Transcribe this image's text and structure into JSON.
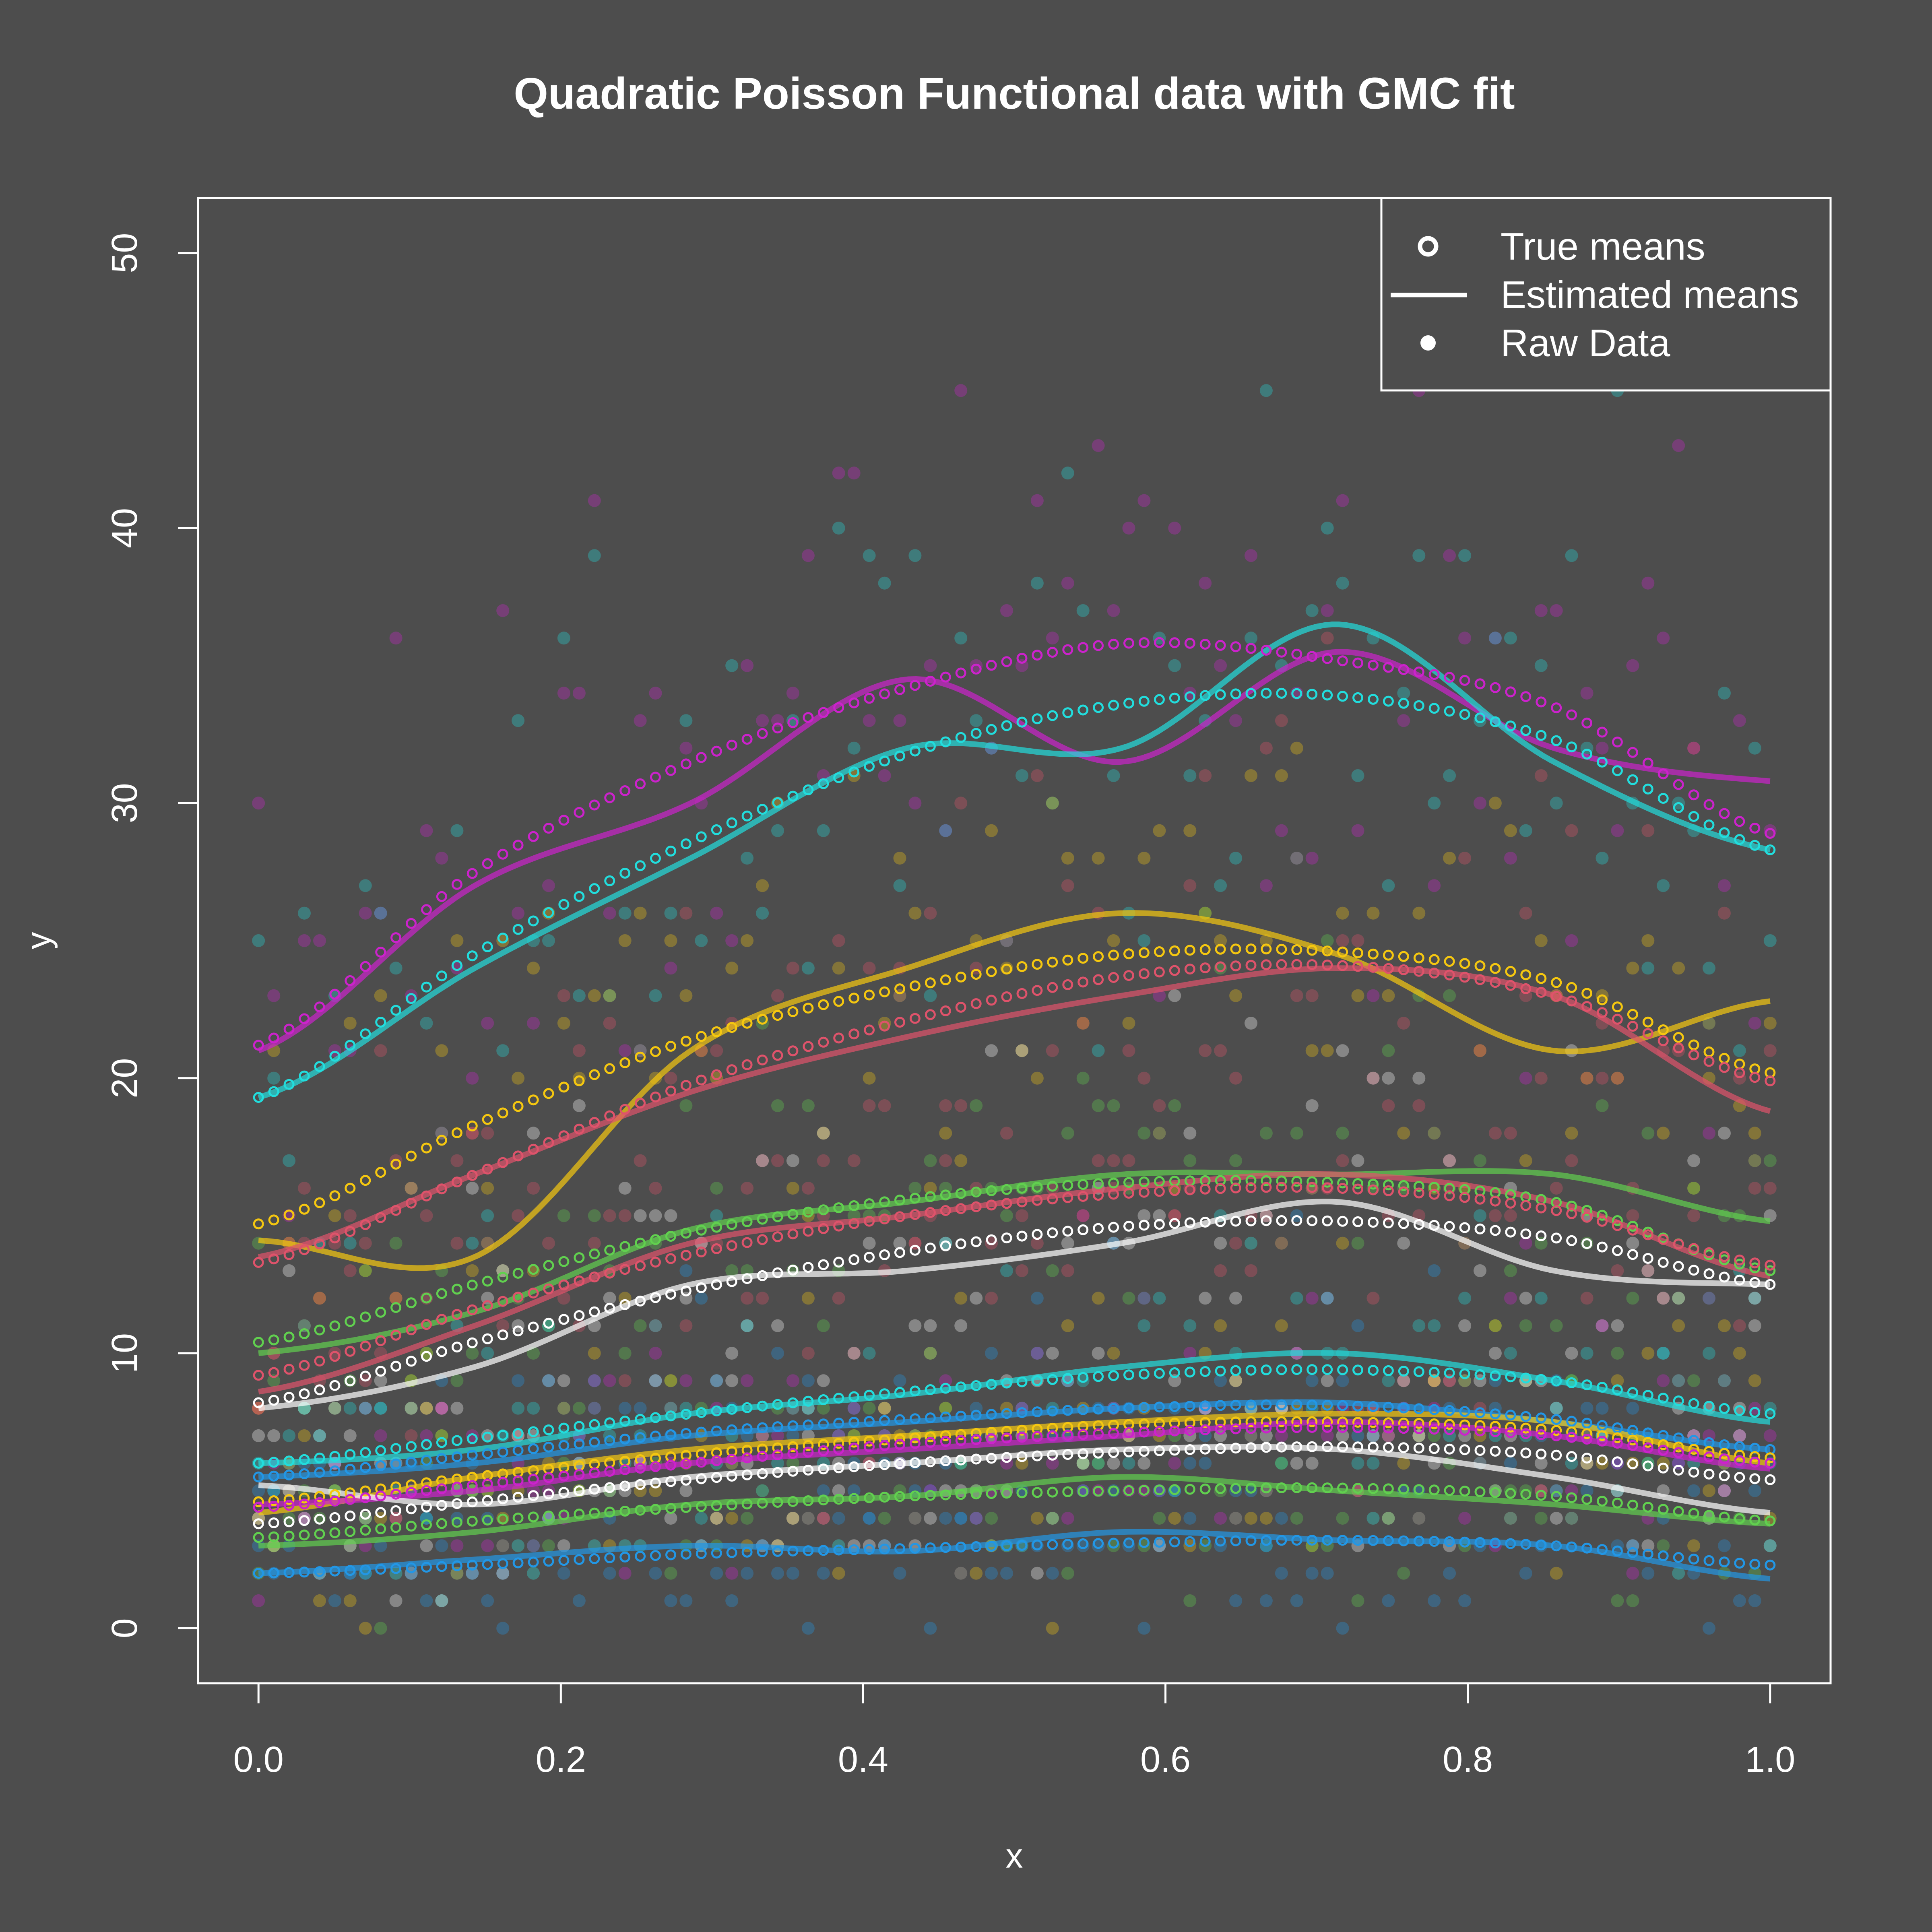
{
  "chart_data": {
    "type": "scatter",
    "title": "Quadratic Poisson Functional data with GMC fit",
    "xlabel": "x",
    "ylabel": "y",
    "xlim": [
      -0.04,
      1.04
    ],
    "ylim": [
      -2,
      52
    ],
    "xticks": [
      "0.0",
      "0.2",
      "0.4",
      "0.6",
      "0.8",
      "1.0"
    ],
    "yticks": [
      "0",
      "10",
      "20",
      "30",
      "40",
      "50"
    ],
    "grid": false,
    "legend": {
      "position": "top-right",
      "entries": [
        {
          "label": "True means",
          "marker": "open-circle"
        },
        {
          "label": "Estimated means",
          "marker": "line"
        },
        {
          "label": "Raw Data",
          "marker": "filled-dot"
        }
      ]
    },
    "colors": {
      "background": "#4d4d4d",
      "foreground": "#ffffff"
    },
    "series": [
      {
        "color": "#cc22cc",
        "true_mean": [
          21.2,
          27.5,
          31.5,
          34.2,
          35.8,
          35.2,
          33.5,
          28.9
        ],
        "estimated_mean": [
          21.0,
          27.0,
          30.0,
          34.5,
          31.5,
          35.5,
          32.0,
          30.8
        ]
      },
      {
        "color": "#22dddd",
        "true_mean": [
          19.3,
          24.5,
          28.6,
          31.8,
          33.6,
          33.9,
          32.3,
          28.3
        ],
        "estimated_mean": [
          19.3,
          24.0,
          28.0,
          32.0,
          32.0,
          36.5,
          31.5,
          28.3
        ]
      },
      {
        "color": "#f5c710",
        "true_mean": [
          14.7,
          18.3,
          21.4,
          23.3,
          24.5,
          24.6,
          23.5,
          20.2
        ],
        "estimated_mean": [
          14.1,
          13.5,
          21.0,
          24.0,
          26.0,
          24.5,
          21.0,
          22.8
        ]
      },
      {
        "color": "#df536b",
        "true_mean": [
          13.3,
          16.5,
          19.8,
          22.1,
          23.7,
          24.1,
          23.0,
          19.9
        ],
        "estimated_mean": [
          13.5,
          16.5,
          19.5,
          21.5,
          23.0,
          24.0,
          23.0,
          18.8
        ]
      },
      {
        "color": "#61d04f",
        "true_mean": [
          10.4,
          12.5,
          14.4,
          15.6,
          16.2,
          16.2,
          15.5,
          13.0
        ],
        "estimated_mean": [
          10.0,
          11.5,
          14.5,
          15.5,
          16.5,
          16.5,
          16.5,
          14.8
        ]
      },
      {
        "color": "#df536b",
        "true_mean": [
          9.2,
          11.6,
          13.6,
          15.0,
          15.8,
          16.0,
          15.2,
          13.2
        ],
        "estimated_mean": [
          8.6,
          11.0,
          14.0,
          15.0,
          16.0,
          16.5,
          15.5,
          12.8
        ]
      },
      {
        "color": "#ffffff",
        "true_mean": [
          8.2,
          10.4,
          12.3,
          13.7,
          14.6,
          14.8,
          14.2,
          12.5
        ],
        "estimated_mean": [
          8.0,
          9.5,
          12.5,
          13.0,
          14.0,
          15.5,
          13.0,
          12.5
        ]
      },
      {
        "color": "#22dddd",
        "true_mean": [
          6.0,
          6.9,
          7.8,
          8.6,
          9.2,
          9.4,
          9.0,
          7.8
        ],
        "estimated_mean": [
          6.0,
          6.5,
          7.8,
          8.5,
          9.5,
          10.0,
          9.0,
          7.5
        ]
      },
      {
        "color": "#2297e6",
        "true_mean": [
          5.5,
          6.3,
          7.1,
          7.6,
          8.0,
          8.1,
          7.6,
          6.5
        ],
        "estimated_mean": [
          5.5,
          6.0,
          7.0,
          7.5,
          8.0,
          8.2,
          7.5,
          6.5
        ]
      },
      {
        "color": "#f5c710",
        "true_mean": [
          4.6,
          5.5,
          6.3,
          6.9,
          7.4,
          7.5,
          7.2,
          6.2
        ],
        "estimated_mean": [
          4.2,
          5.5,
          6.5,
          7.0,
          7.5,
          7.8,
          7.5,
          6.0
        ]
      },
      {
        "color": "#cc22cc",
        "true_mean": [
          4.4,
          5.2,
          6.0,
          6.7,
          7.1,
          7.3,
          7.0,
          6.0
        ],
        "estimated_mean": [
          4.5,
          5.0,
          6.0,
          6.5,
          7.0,
          7.5,
          7.0,
          5.8
        ]
      },
      {
        "color": "#ffffff",
        "true_mean": [
          3.8,
          4.6,
          5.4,
          6.0,
          6.4,
          6.6,
          6.3,
          5.4
        ],
        "estimated_mean": [
          5.2,
          4.5,
          5.5,
          6.0,
          6.5,
          6.5,
          5.5,
          4.2
        ]
      },
      {
        "color": "#61d04f",
        "true_mean": [
          3.3,
          3.9,
          4.4,
          4.8,
          5.0,
          5.1,
          4.8,
          3.9
        ],
        "estimated_mean": [
          3.0,
          3.5,
          4.5,
          4.8,
          5.5,
          5.0,
          4.5,
          3.8
        ]
      },
      {
        "color": "#2297e6",
        "true_mean": [
          2.0,
          2.3,
          2.7,
          2.9,
          3.1,
          3.2,
          3.0,
          2.3
        ],
        "estimated_mean": [
          2.0,
          2.5,
          3.0,
          2.8,
          3.5,
          3.2,
          3.0,
          1.8
        ]
      }
    ],
    "x_grid": [
      0.0,
      0.143,
      0.286,
      0.429,
      0.571,
      0.714,
      0.857,
      1.0
    ]
  }
}
